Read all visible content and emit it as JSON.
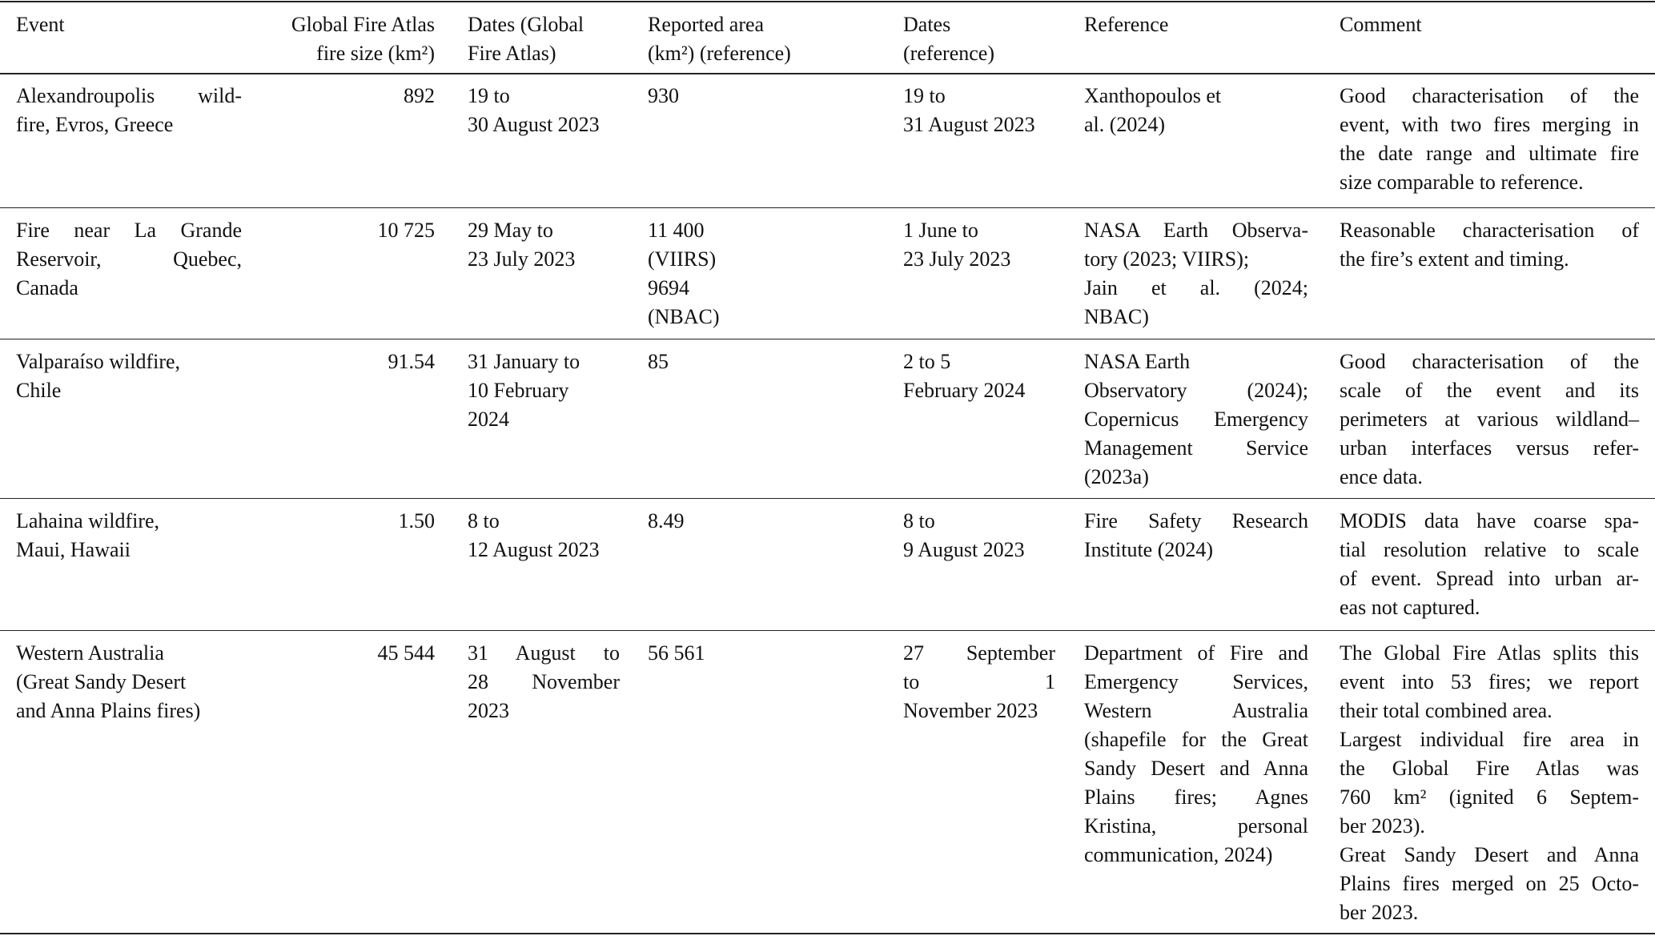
{
  "table": {
    "headers": [
      {
        "paragraphs": [
          [
            "Event"
          ]
        ]
      },
      {
        "paragraphs": [
          [
            "Global Fire Atlas",
            "fire size (km²)"
          ]
        ],
        "align": "right"
      },
      {
        "paragraphs": [
          [
            "Dates (Global",
            "Fire Atlas)"
          ]
        ]
      },
      {
        "paragraphs": [
          [
            "Reported area",
            "(km²) (reference)"
          ]
        ]
      },
      {
        "paragraphs": [
          [
            "Dates",
            "(reference)"
          ]
        ]
      },
      {
        "paragraphs": [
          [
            "Reference"
          ]
        ]
      },
      {
        "paragraphs": [
          [
            "Comment"
          ]
        ]
      }
    ],
    "rows": [
      [
        {
          "paragraphs": [
            [
              "Alexandroupolis wild-",
              "fire, Evros, Greece"
            ]
          ],
          "justify": true
        },
        {
          "paragraphs": [
            [
              "892"
            ]
          ],
          "align": "right"
        },
        {
          "paragraphs": [
            [
              "19 to",
              "30 August 2023"
            ]
          ]
        },
        {
          "paragraphs": [
            [
              "930"
            ]
          ]
        },
        {
          "paragraphs": [
            [
              "19 to",
              "31 August 2023"
            ]
          ]
        },
        {
          "paragraphs": [
            [
              "Xanthopoulos et",
              "al. (2024)"
            ]
          ]
        },
        {
          "paragraphs": [
            [
              "Good characterisation of the",
              "event, with two fires merging in",
              "the date range and ultimate fire",
              "size comparable to reference."
            ]
          ],
          "justify": true
        }
      ],
      [
        {
          "paragraphs": [
            [
              "Fire near La Grande",
              "Reservoir, Quebec,",
              "Canada"
            ]
          ],
          "justify": true
        },
        {
          "paragraphs": [
            [
              "10 725"
            ]
          ],
          "align": "right"
        },
        {
          "paragraphs": [
            [
              "29 May to",
              "23 July 2023"
            ]
          ]
        },
        {
          "paragraphs": [
            [
              "11 400",
              "(VIIRS)",
              "9694",
              "(NBAC)"
            ]
          ]
        },
        {
          "paragraphs": [
            [
              "1 June to",
              "23 July 2023"
            ]
          ]
        },
        {
          "paragraphs": [
            [
              "NASA Earth Observa-",
              "tory (2023; VIIRS);"
            ],
            [
              "Jain et al. (2024;",
              "NBAC)"
            ]
          ],
          "justify": true
        },
        {
          "paragraphs": [
            [
              "Reasonable characterisation of",
              "the fire’s extent and timing."
            ]
          ],
          "justify": true
        }
      ],
      [
        {
          "paragraphs": [
            [
              "Valparaíso wildfire,",
              "Chile"
            ]
          ]
        },
        {
          "paragraphs": [
            [
              "91.54"
            ]
          ],
          "align": "right"
        },
        {
          "paragraphs": [
            [
              "31 January to",
              "10 February",
              "2024"
            ]
          ]
        },
        {
          "paragraphs": [
            [
              "85"
            ]
          ]
        },
        {
          "paragraphs": [
            [
              "2 to 5",
              "February 2024"
            ]
          ]
        },
        {
          "paragraphs": [
            [
              "NASA Earth"
            ],
            [
              "Observatory (2024);",
              "Copernicus Emergency",
              "Management Service",
              "(2023a)"
            ]
          ],
          "justify": true
        },
        {
          "paragraphs": [
            [
              "Good characterisation of the",
              "scale of the event and its",
              "perimeters at various wildland–",
              "urban interfaces versus refer-",
              "ence data."
            ]
          ],
          "justify": true
        }
      ],
      [
        {
          "paragraphs": [
            [
              "Lahaina wildfire,",
              "Maui, Hawaii"
            ]
          ]
        },
        {
          "paragraphs": [
            [
              "1.50"
            ]
          ],
          "align": "right"
        },
        {
          "paragraphs": [
            [
              "8 to",
              "12 August 2023"
            ]
          ]
        },
        {
          "paragraphs": [
            [
              "8.49"
            ]
          ]
        },
        {
          "paragraphs": [
            [
              "8 to",
              "9 August 2023"
            ]
          ]
        },
        {
          "paragraphs": [
            [
              "Fire Safety Research",
              "Institute (2024)"
            ]
          ],
          "justify": true
        },
        {
          "paragraphs": [
            [
              "MODIS data have coarse spa-",
              "tial resolution relative to scale",
              "of event. Spread into urban ar-",
              "eas not captured."
            ]
          ],
          "justify": true
        }
      ],
      [
        {
          "paragraphs": [
            [
              "Western Australia",
              "(Great Sandy Desert",
              "and Anna Plains fires)"
            ]
          ]
        },
        {
          "paragraphs": [
            [
              "45 544"
            ]
          ],
          "align": "right"
        },
        {
          "paragraphs": [
            [
              "31 August to",
              "28 November",
              "2023"
            ]
          ],
          "justify": true
        },
        {
          "paragraphs": [
            [
              "56 561"
            ]
          ]
        },
        {
          "paragraphs": [
            [
              "27 September",
              "to 1",
              "November 2023"
            ]
          ],
          "justify": true
        },
        {
          "paragraphs": [
            [
              "Department of Fire and",
              "Emergency Services,",
              "Western Australia",
              "(shapefile for the Great",
              "Sandy Desert and Anna",
              "Plains fires; Agnes",
              "Kristina, personal",
              "communication, 2024)"
            ]
          ],
          "justify": true
        },
        {
          "paragraphs": [
            [
              "The Global Fire Atlas splits this",
              "event into 53 fires; we report",
              "their total combined area."
            ],
            [
              "Largest individual fire area in",
              "the Global Fire Atlas was",
              "760 km² (ignited 6 Septem-",
              "ber 2023)."
            ],
            [
              "Great Sandy Desert and Anna",
              "Plains fires merged on 25 Octo-",
              "ber 2023."
            ]
          ],
          "justify": true
        }
      ]
    ]
  }
}
